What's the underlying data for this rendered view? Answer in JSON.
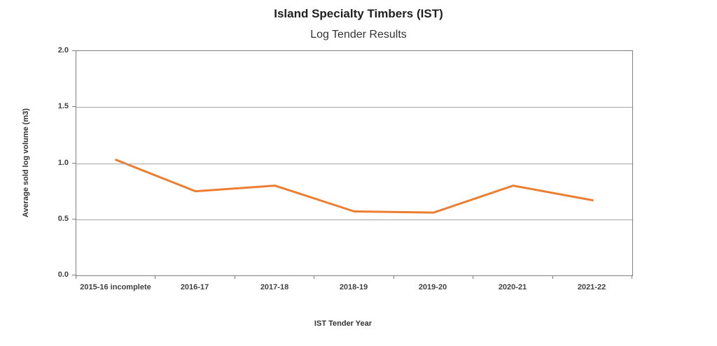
{
  "chart_data": {
    "type": "line",
    "title": "Island Specialty Timbers (IST)",
    "subtitle": "Log Tender Results",
    "xlabel": "IST Tender Year",
    "ylabel": "Average sold log volume (m3)",
    "categories": [
      "2015-16 incomplete",
      "2016-17",
      "2017-18",
      "2018-19",
      "2019-20",
      "2020-21",
      "2021-22"
    ],
    "series": [
      {
        "name": "Average sold log volume (m3)",
        "values": [
          1.03,
          0.75,
          0.8,
          0.57,
          0.56,
          0.8,
          0.67
        ]
      }
    ],
    "ylim": [
      0.0,
      2.0
    ],
    "yticks": [
      0.0,
      0.5,
      1.0,
      1.5,
      2.0
    ],
    "ytick_format_decimals": 1,
    "grid": true,
    "legend": "none",
    "line_color": "#ED7D31",
    "axis_color": "#7f7f7f",
    "gridline_color": "#a6a6a6"
  }
}
